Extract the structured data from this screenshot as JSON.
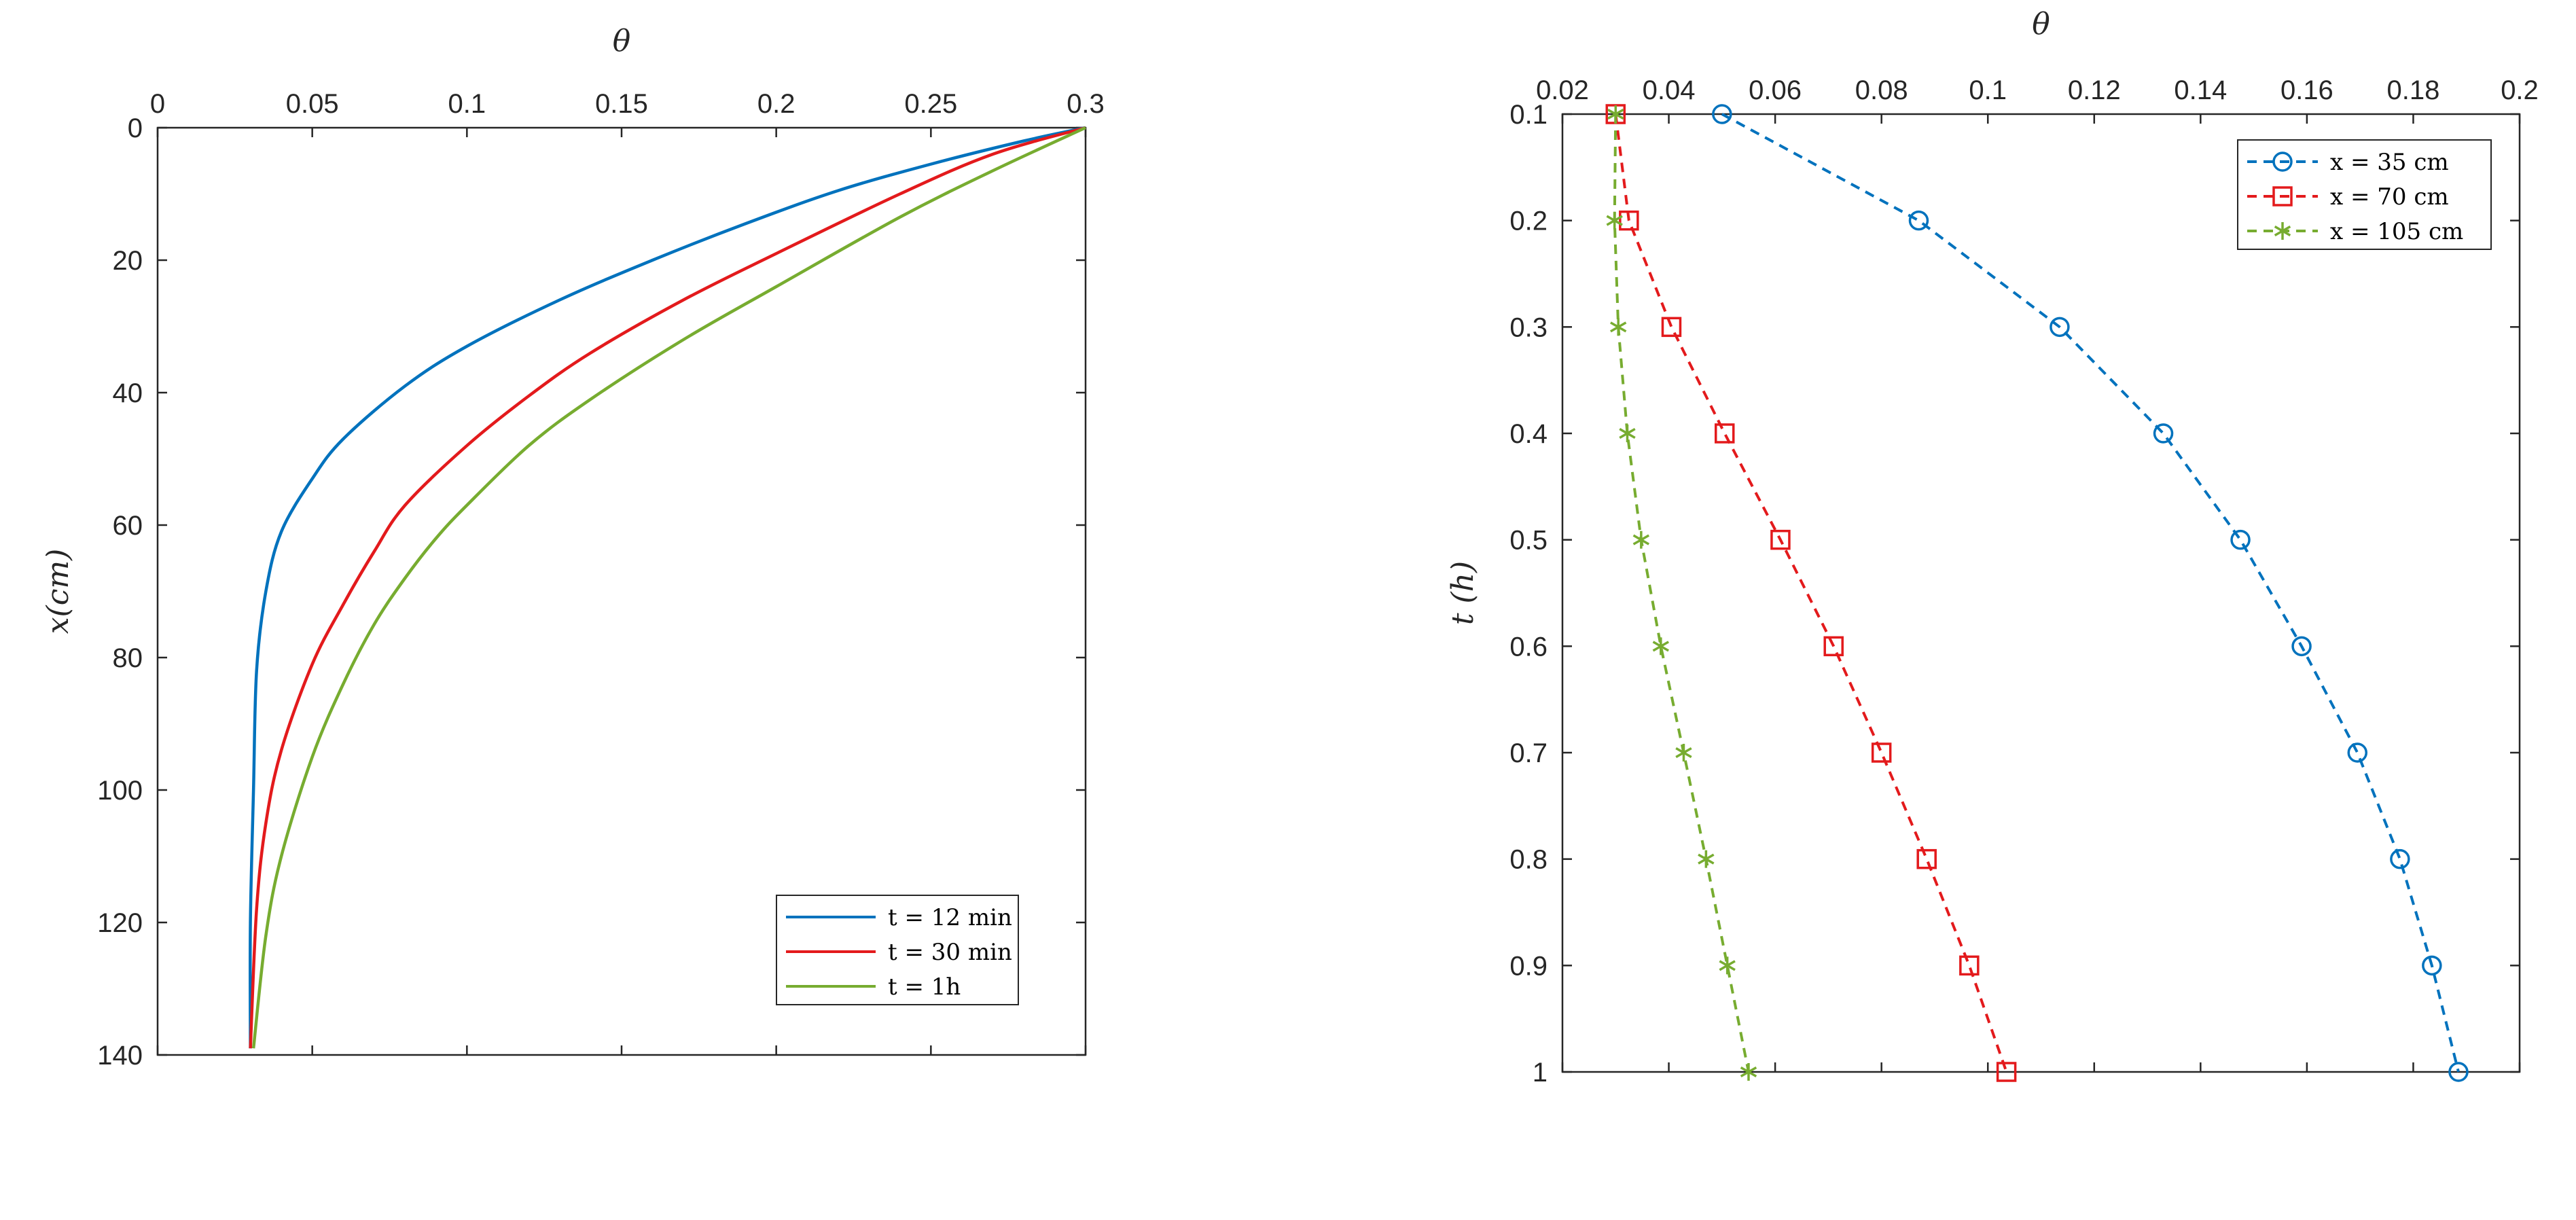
{
  "chart_data": [
    {
      "type": "line",
      "xlabel": "θ",
      "ylabel": "x(cm)",
      "x_axis_location": "top",
      "y_direction": "reversed",
      "xlim": [
        0,
        0.3
      ],
      "ylim": [
        0,
        140
      ],
      "xticks": [
        0,
        0.05,
        0.1,
        0.15,
        0.2,
        0.25,
        0.3
      ],
      "xtick_labels": [
        "0",
        "0.05",
        "0.1",
        "0.15",
        "0.2",
        "0.25",
        "0.3"
      ],
      "yticks": [
        0,
        20,
        40,
        60,
        80,
        100,
        120,
        140
      ],
      "ytick_labels": [
        "0",
        "20",
        "40",
        "60",
        "80",
        "100",
        "120",
        "140"
      ],
      "grid": false,
      "legend_position": "bottom-right",
      "series": [
        {
          "name": "t = 12 min",
          "color": "#0072BD",
          "points": [
            [
              0.3,
              0
            ],
            [
              0.28,
              2
            ],
            [
              0.25,
              5.5
            ],
            [
              0.22,
              9.5
            ],
            [
              0.19,
              14.5
            ],
            [
              0.16,
              20
            ],
            [
              0.13,
              26
            ],
            [
              0.1,
              33
            ],
            [
              0.08,
              39
            ],
            [
              0.06,
              47
            ],
            [
              0.05,
              53
            ],
            [
              0.04,
              61
            ],
            [
              0.035,
              70
            ],
            [
              0.032,
              82
            ],
            [
              0.031,
              100
            ],
            [
              0.03,
              120
            ],
            [
              0.03,
              139
            ]
          ]
        },
        {
          "name": "t = 30 min",
          "color": "#E31A1C",
          "points": [
            [
              0.3,
              0
            ],
            [
              0.27,
              4
            ],
            [
              0.24,
              10
            ],
            [
              0.2,
              19
            ],
            [
              0.17,
              26
            ],
            [
              0.14,
              34
            ],
            [
              0.12,
              40.5
            ],
            [
              0.1,
              48
            ],
            [
              0.08,
              57
            ],
            [
              0.07,
              64
            ],
            [
              0.06,
              72
            ],
            [
              0.05,
              81
            ],
            [
              0.04,
              94
            ],
            [
              0.035,
              105
            ],
            [
              0.032,
              118
            ],
            [
              0.03,
              139
            ]
          ]
        },
        {
          "name": "t = 1h",
          "color": "#77AC30",
          "points": [
            [
              0.3,
              0
            ],
            [
              0.27,
              6.5
            ],
            [
              0.24,
              13.5
            ],
            [
              0.2,
              24
            ],
            [
              0.17,
              32
            ],
            [
              0.14,
              41
            ],
            [
              0.12,
              48
            ],
            [
              0.1,
              57
            ],
            [
              0.09,
              62
            ],
            [
              0.08,
              68
            ],
            [
              0.07,
              75
            ],
            [
              0.06,
              84
            ],
            [
              0.05,
              95
            ],
            [
              0.04,
              110
            ],
            [
              0.035,
              122
            ],
            [
              0.031,
              139
            ]
          ]
        }
      ]
    },
    {
      "type": "line",
      "xlabel": "θ",
      "ylabel": "t (h)",
      "x_axis_location": "top",
      "y_direction": "reversed",
      "xlim": [
        0.02,
        0.2
      ],
      "ylim": [
        0.1,
        1
      ],
      "xticks": [
        0.02,
        0.04,
        0.06,
        0.08,
        0.1,
        0.12,
        0.14,
        0.16,
        0.18,
        0.2
      ],
      "xtick_labels": [
        "0.02",
        "0.04",
        "0.06",
        "0.08",
        "0.1",
        "0.12",
        "0.14",
        "0.16",
        "0.18",
        "0.2"
      ],
      "yticks": [
        0.1,
        0.2,
        0.3,
        0.4,
        0.5,
        0.6,
        0.7,
        0.8,
        0.9,
        1
      ],
      "ytick_labels": [
        "0.1",
        "0.2",
        "0.3",
        "0.4",
        "0.5",
        "0.6",
        "0.7",
        "0.8",
        "0.9",
        "1"
      ],
      "grid": false,
      "legend_position": "top-right",
      "series": [
        {
          "name": "x = 35 cm",
          "color": "#0072BD",
          "marker": "circle",
          "points": [
            [
              0.05,
              0.1
            ],
            [
              0.087,
              0.2
            ],
            [
              0.1135,
              0.3
            ],
            [
              0.133,
              0.4
            ],
            [
              0.1475,
              0.5
            ],
            [
              0.159,
              0.6
            ],
            [
              0.1695,
              0.7
            ],
            [
              0.1775,
              0.8
            ],
            [
              0.1835,
              0.9
            ],
            [
              0.1885,
              1
            ]
          ]
        },
        {
          "name": "x = 70 cm",
          "color": "#E31A1C",
          "marker": "square",
          "points": [
            [
              0.03,
              0.1
            ],
            [
              0.0325,
              0.2
            ],
            [
              0.0405,
              0.3
            ],
            [
              0.0505,
              0.4
            ],
            [
              0.061,
              0.5
            ],
            [
              0.071,
              0.6
            ],
            [
              0.08,
              0.7
            ],
            [
              0.0885,
              0.8
            ],
            [
              0.0965,
              0.9
            ],
            [
              0.1035,
              1
            ]
          ]
        },
        {
          "name": "x = 105 cm",
          "color": "#77AC30",
          "marker": "asterisk",
          "points": [
            [
              0.03,
              0.1
            ],
            [
              0.0298,
              0.2
            ],
            [
              0.0305,
              0.3
            ],
            [
              0.0322,
              0.4
            ],
            [
              0.0348,
              0.5
            ],
            [
              0.0385,
              0.6
            ],
            [
              0.0428,
              0.7
            ],
            [
              0.047,
              0.8
            ],
            [
              0.051,
              0.9
            ],
            [
              0.055,
              1
            ]
          ]
        }
      ]
    }
  ]
}
